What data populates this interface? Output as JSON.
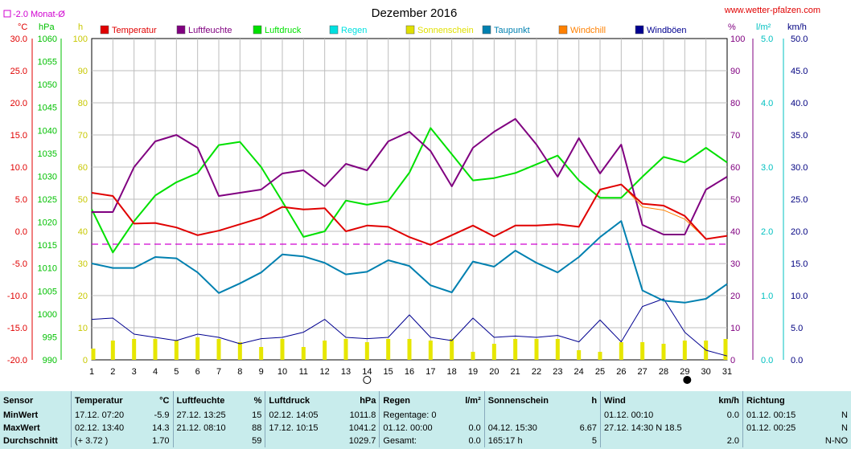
{
  "header": {
    "title": "Dezember 2016",
    "site": "www.wetter-pfalzen.com",
    "month_avg_legend": "-2.0 Monat-Ø"
  },
  "axes": {
    "temp": {
      "unit": "°C",
      "ticks": [
        "30.0",
        "25.0",
        "20.0",
        "15.0",
        "10.0",
        "5.0",
        "0.0",
        "-5.0",
        "-10.0",
        "-15.0",
        "-20.0"
      ]
    },
    "pressure": {
      "unit": "hPa",
      "ticks": [
        "1060",
        "1055",
        "1050",
        "1045",
        "1040",
        "1035",
        "1030",
        "1025",
        "1020",
        "1015",
        "1010",
        "1005",
        "1000",
        "995",
        "990"
      ]
    },
    "sun": {
      "unit": "h",
      "ticks": [
        "100",
        "90",
        "80",
        "70",
        "60",
        "50",
        "40",
        "30",
        "20",
        "10",
        "0"
      ]
    },
    "humidity": {
      "unit": "%",
      "ticks": [
        "100",
        "90",
        "80",
        "70",
        "60",
        "50",
        "40",
        "30",
        "20",
        "10",
        "0"
      ]
    },
    "rain": {
      "unit": "l/m²",
      "ticks": [
        "5.0",
        "4.0",
        "3.0",
        "2.0",
        "1.0",
        "0.0"
      ]
    },
    "wind": {
      "unit": "km/h",
      "ticks": [
        "50.0",
        "45.0",
        "40.0",
        "35.0",
        "30.0",
        "25.0",
        "20.0",
        "15.0",
        "10.0",
        "5.0",
        "0.0"
      ]
    },
    "days": [
      "1",
      "2",
      "3",
      "4",
      "5",
      "6",
      "7",
      "8",
      "9",
      "10",
      "11",
      "12",
      "13",
      "14",
      "15",
      "16",
      "17",
      "18",
      "19",
      "20",
      "21",
      "22",
      "23",
      "24",
      "25",
      "26",
      "27",
      "28",
      "29",
      "30",
      "31"
    ]
  },
  "legend": [
    {
      "name": "Temperatur",
      "color": "#e00000"
    },
    {
      "name": "Luftfeuchte",
      "color": "#800080"
    },
    {
      "name": "Luftdruck",
      "color": "#00e000"
    },
    {
      "name": "Regen",
      "color": "#00e0e0"
    },
    {
      "name": "Sonnenschein",
      "color": "#e0e000"
    },
    {
      "name": "Taupunkt",
      "color": "#0080b0"
    },
    {
      "name": "Windchill",
      "color": "#ff8000"
    },
    {
      "name": "Windböen",
      "color": "#000090"
    }
  ],
  "chart_data": {
    "type": "line",
    "title": "Dezember 2016",
    "x": [
      1,
      2,
      3,
      4,
      5,
      6,
      7,
      8,
      9,
      10,
      11,
      12,
      13,
      14,
      15,
      16,
      17,
      18,
      19,
      20,
      21,
      22,
      23,
      24,
      25,
      26,
      27,
      28,
      29,
      30,
      31
    ],
    "series": [
      {
        "name": "Temperatur",
        "axis": "temp",
        "values": [
          6.0,
          5.5,
          1.2,
          1.3,
          0.6,
          -0.6,
          0.1,
          1.1,
          2.1,
          3.8,
          3.4,
          3.6,
          0.0,
          0.9,
          0.7,
          -0.9,
          -2.1,
          -0.6,
          0.9,
          -0.8,
          0.9,
          0.9,
          1.1,
          0.7,
          6.5,
          7.3,
          4.3,
          4.0,
          2.4,
          -1.2,
          -0.7
        ]
      },
      {
        "name": "Luftfeuchte",
        "axis": "humidity",
        "values": [
          46,
          46,
          60,
          68,
          70,
          66,
          51,
          52,
          53,
          58,
          59,
          54,
          61,
          59,
          68,
          71,
          65,
          54,
          66,
          71,
          75,
          67,
          57,
          69,
          58,
          67,
          42,
          39,
          39,
          53,
          57
        ]
      },
      {
        "name": "Luftdruck",
        "axis": "pressure",
        "values": [
          1022.8,
          1013.4,
          1020.2,
          1025.8,
          1028.7,
          1030.7,
          1036.8,
          1037.5,
          1032.0,
          1024.5,
          1016.8,
          1018.0,
          1024.7,
          1023.8,
          1024.6,
          1030.8,
          1040.5,
          1034.8,
          1029.1,
          1029.6,
          1030.7,
          1032.6,
          1034.5,
          1029.1,
          1025.3,
          1025.3,
          1029.9,
          1034.2,
          1033.0,
          1036.2,
          1033.0
        ]
      },
      {
        "name": "Taupunkt",
        "axis": "temp",
        "values": [
          -5.0,
          -5.7,
          -5.7,
          -4.0,
          -4.2,
          -6.4,
          -9.6,
          -8.1,
          -6.4,
          -3.6,
          -3.9,
          -4.9,
          -6.7,
          -6.3,
          -4.5,
          -5.4,
          -8.4,
          -9.5,
          -4.7,
          -5.5,
          -3.0,
          -4.9,
          -6.4,
          -4.0,
          -0.9,
          1.6,
          -9.2,
          -10.8,
          -11.1,
          -10.5,
          -8.2
        ]
      },
      {
        "name": "Windchill",
        "axis": "temp",
        "values": [
          6.0,
          5.5,
          1.2,
          1.3,
          0.6,
          -0.6,
          0.1,
          1.1,
          2.1,
          3.8,
          3.4,
          3.6,
          0.0,
          0.9,
          0.7,
          -0.9,
          -2.1,
          -0.6,
          0.9,
          -0.8,
          0.9,
          0.9,
          1.1,
          0.7,
          6.5,
          7.3,
          3.8,
          3.3,
          1.9,
          -1.2,
          -0.7
        ]
      },
      {
        "name": "Windböen",
        "axis": "wind",
        "values": [
          6.3,
          6.5,
          4.0,
          3.5,
          3.0,
          4.0,
          3.5,
          2.5,
          3.3,
          3.5,
          4.3,
          6.3,
          3.5,
          3.3,
          3.5,
          7.0,
          3.5,
          3.0,
          6.5,
          3.5,
          3.7,
          3.5,
          3.8,
          2.8,
          6.2,
          2.8,
          8.3,
          9.5,
          4.3,
          1.5,
          0.6
        ]
      },
      {
        "name": "Sonnenschein",
        "axis": "sun",
        "type": "bar",
        "values": [
          3.5,
          6.0,
          6.5,
          6.5,
          6.0,
          7.0,
          6.5,
          5.5,
          4.0,
          6.5,
          4.0,
          6.0,
          6.5,
          5.5,
          6.5,
          6.5,
          6.0,
          6.5,
          2.5,
          5.0,
          6.5,
          6.5,
          6.5,
          3.0,
          2.5,
          5.5,
          5.5,
          5.0,
          6.0,
          6.0,
          6.5
        ]
      },
      {
        "name": "Regen",
        "axis": "rain",
        "type": "bar",
        "values": [
          0,
          0,
          0,
          0,
          0,
          0,
          0,
          0,
          0,
          0,
          0,
          0,
          0,
          0,
          0,
          0,
          0,
          0,
          0,
          0,
          0,
          0,
          0,
          0,
          0,
          0,
          0,
          0,
          0,
          0,
          0
        ]
      }
    ],
    "monthly_average_temp": -2.0,
    "ranges": {
      "temp": [
        -20,
        30
      ],
      "pressure": [
        990,
        1060
      ],
      "humidity": [
        0,
        100
      ],
      "sun": [
        0,
        100
      ],
      "rain": [
        0,
        5
      ],
      "wind": [
        0,
        50
      ]
    },
    "grid": true
  },
  "stats": {
    "headers": [
      "Sensor",
      "Temperatur",
      "°C",
      "Luftfeuchte",
      "%",
      "Luftdruck",
      "hPa",
      "Regen",
      "l/m²",
      "Sonnenschein",
      "h",
      "Wind",
      "km/h",
      "Richtung"
    ],
    "rows": [
      {
        "label": "MinWert",
        "temp_time": "17.12.  07:20",
        "temp_val": "-5.9",
        "hum_time": "27.12.  13:25",
        "hum_val": "15",
        "pres_time": "02.12.  14:05",
        "pres_val": "1011.8",
        "rain_time": "Regentage: 0",
        "rain_val": "",
        "sun_time": "",
        "sun_val": "",
        "wind_time": "01.12.  00:10",
        "wind_val": "0.0",
        "dir_time": "01.12.  00:15",
        "dir_val": "N"
      },
      {
        "label": "MaxWert",
        "temp_time": "02.12.  13:40",
        "temp_val": "14.3",
        "hum_time": "21.12.  08:10",
        "hum_val": "88",
        "pres_time": "17.12.  10:15",
        "pres_val": "1041.2",
        "rain_time": "01.12.  00:00",
        "rain_val": "0.0",
        "sun_time": "04.12.  15:30",
        "sun_val": "6.67",
        "wind_time": "27.12.  14:30  N 18.5",
        "wind_val": "",
        "dir_time": "01.12.  00:25",
        "dir_val": "N"
      },
      {
        "label": "Durchschnitt",
        "temp_time": "(+ 3.72 )",
        "temp_val": "1.70",
        "hum_time": "",
        "hum_val": "59",
        "pres_time": "",
        "pres_val": "1029.7",
        "rain_time": "Gesamt:",
        "rain_val": "0.0",
        "sun_time": "165:17 h",
        "sun_val": "5",
        "wind_time": "",
        "wind_val": "2.0",
        "dir_time": "",
        "dir_val": "N-NO"
      }
    ]
  }
}
